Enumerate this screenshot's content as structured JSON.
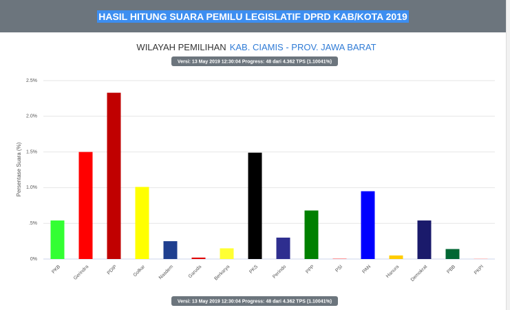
{
  "header": {
    "title": "HASIL HITUNG SUARA PEMILU LEGISLATIF DPRD KAB/KOTA 2019"
  },
  "subtitle": {
    "prefix": "WILAYAH PEMILIHAN",
    "region": "KAB. CIAMIS - PROV. JAWA BARAT"
  },
  "version": "Versi: 13 May 2019 12:30:04 Progress: 48 dari 4.362 TPS (1.10041%)",
  "chart_data": {
    "type": "bar",
    "ylabel": "Persentase Suara (%)",
    "categories": [
      "PKB",
      "Gerindra",
      "PDIP",
      "Golkar",
      "Nasdem",
      "Garuda",
      "Berkarya",
      "PKS",
      "Perindo",
      "PPP",
      "PSI",
      "PAN",
      "Hanura",
      "Demokrat",
      "PBB",
      "PKPI"
    ],
    "values": [
      0.54,
      1.5,
      2.33,
      1.01,
      0.25,
      0.02,
      0.15,
      1.49,
      0.3,
      0.68,
      0.01,
      0.95,
      0.05,
      0.54,
      0.14,
      0.005
    ],
    "colors": [
      "#33ff33",
      "#ff0000",
      "#c00000",
      "#ffff00",
      "#1f3f8f",
      "#e00000",
      "#ffff33",
      "#000000",
      "#2e2e8f",
      "#008000",
      "#ff9999",
      "#0000ff",
      "#ffcc00",
      "#1a1a6b",
      "#006633",
      "#ff9999"
    ],
    "ylim": [
      0,
      2.5
    ],
    "yticks": [
      {
        "value": 0,
        "label": "0%"
      },
      {
        "value": 0.5,
        "label": ".5%"
      },
      {
        "value": 1,
        "label": "1.0%"
      },
      {
        "value": 1.5,
        "label": "1.5%"
      },
      {
        "value": 2,
        "label": "2.0%"
      },
      {
        "value": 2.5,
        "label": "2.5%"
      }
    ],
    "grid": true
  }
}
